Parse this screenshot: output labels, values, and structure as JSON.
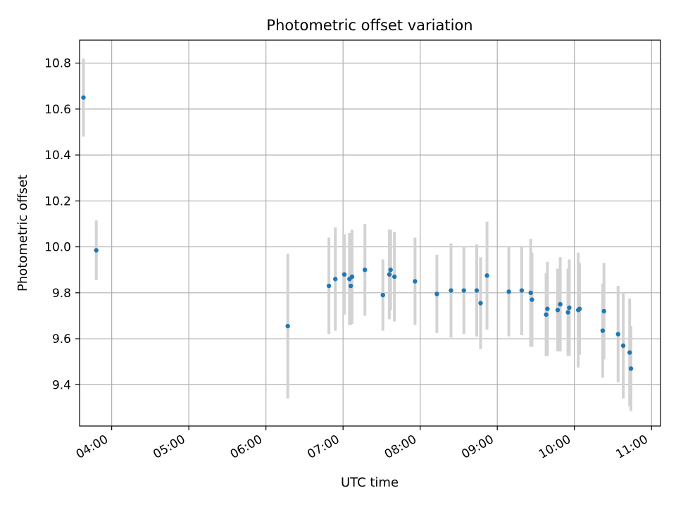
{
  "chart_data": {
    "type": "scatter",
    "title": "Photometric offset variation",
    "xlabel": "UTC time",
    "ylabel": "Photometric offset",
    "x_ticks": [
      "04:00",
      "05:00",
      "06:00",
      "07:00",
      "08:00",
      "09:00",
      "10:00",
      "11:00"
    ],
    "y_ticks": [
      "9.4",
      "9.6",
      "9.8",
      "10.0",
      "10.2",
      "10.4",
      "10.6",
      "10.8"
    ],
    "xlim": [
      "03:35",
      "11:07"
    ],
    "ylim": [
      9.22,
      10.9
    ],
    "grid": true,
    "colors": {
      "marker": "#1f77b4",
      "errorbar": "#d3d3d3",
      "grid": "#b0b0b0"
    },
    "series": [
      {
        "points": [
          {
            "x": "03:38",
            "y": 10.65,
            "err": 0.17
          },
          {
            "x": "03:48",
            "y": 9.985,
            "err": 0.13
          },
          {
            "x": "06:17",
            "y": 9.655,
            "err": 0.315
          },
          {
            "x": "06:49",
            "y": 9.83,
            "err": 0.21
          },
          {
            "x": "06:54",
            "y": 9.86,
            "err": 0.225
          },
          {
            "x": "07:01",
            "y": 9.88,
            "err": 0.175
          },
          {
            "x": "07:05",
            "y": 9.86,
            "err": 0.2
          },
          {
            "x": "07:06",
            "y": 9.83,
            "err": 0.17
          },
          {
            "x": "07:07",
            "y": 9.87,
            "err": 0.205
          },
          {
            "x": "07:17",
            "y": 9.9,
            "err": 0.2
          },
          {
            "x": "07:31",
            "y": 9.79,
            "err": 0.155
          },
          {
            "x": "07:36",
            "y": 9.88,
            "err": 0.195
          },
          {
            "x": "07:37",
            "y": 9.9,
            "err": 0.175
          },
          {
            "x": "07:40",
            "y": 9.87,
            "err": 0.195
          },
          {
            "x": "07:56",
            "y": 9.85,
            "err": 0.19
          },
          {
            "x": "08:13",
            "y": 9.795,
            "err": 0.17
          },
          {
            "x": "08:24",
            "y": 9.81,
            "err": 0.205
          },
          {
            "x": "08:34",
            "y": 9.81,
            "err": 0.19
          },
          {
            "x": "08:44",
            "y": 9.81,
            "err": 0.2
          },
          {
            "x": "08:47",
            "y": 9.755,
            "err": 0.2
          },
          {
            "x": "08:52",
            "y": 9.875,
            "err": 0.235
          },
          {
            "x": "09:09",
            "y": 9.805,
            "err": 0.195
          },
          {
            "x": "09:19",
            "y": 9.81,
            "err": 0.195
          },
          {
            "x": "09:26",
            "y": 9.8,
            "err": 0.235
          },
          {
            "x": "09:27",
            "y": 9.77,
            "err": 0.205
          },
          {
            "x": "09:38",
            "y": 9.705,
            "err": 0.18
          },
          {
            "x": "09:39",
            "y": 9.73,
            "err": 0.205
          },
          {
            "x": "09:47",
            "y": 9.725,
            "err": 0.18
          },
          {
            "x": "09:49",
            "y": 9.75,
            "err": 0.205
          },
          {
            "x": "09:55",
            "y": 9.715,
            "err": 0.19
          },
          {
            "x": "09:56",
            "y": 9.735,
            "err": 0.21
          },
          {
            "x": "10:03",
            "y": 9.725,
            "err": 0.25
          },
          {
            "x": "10:04",
            "y": 9.73,
            "err": 0.2
          },
          {
            "x": "10:22",
            "y": 9.635,
            "err": 0.205
          },
          {
            "x": "10:23",
            "y": 9.72,
            "err": 0.21
          },
          {
            "x": "10:34",
            "y": 9.62,
            "err": 0.21
          },
          {
            "x": "10:38",
            "y": 9.57,
            "err": 0.23
          },
          {
            "x": "10:43",
            "y": 9.54,
            "err": 0.235
          },
          {
            "x": "10:44",
            "y": 9.47,
            "err": 0.185
          }
        ]
      }
    ]
  }
}
